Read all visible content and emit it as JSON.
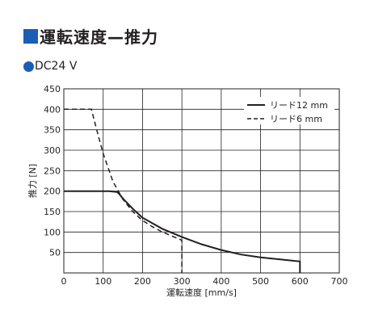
{
  "title": "運転速度—推力",
  "subtitle": "DC24 V",
  "colors": {
    "accent": "#1a5fb4",
    "line": "#231f20",
    "grid": "#231f20"
  },
  "chart_data": {
    "type": "line",
    "title": "運転速度—推力",
    "xlabel": "運転速度 [mm/s]",
    "ylabel": "推力 [N]",
    "xlim": [
      0,
      700
    ],
    "ylim": [
      0,
      450
    ],
    "xticks": [
      0,
      100,
      200,
      300,
      400,
      500,
      600,
      700
    ],
    "yticks": [
      50,
      100,
      150,
      200,
      250,
      300,
      350,
      400,
      450
    ],
    "grid": true,
    "legend_position": "top-right",
    "series": [
      {
        "name": "リード12 mm",
        "style": "solid",
        "x": [
          0,
          115,
          135,
          140,
          150,
          175,
          200,
          250,
          300,
          350,
          400,
          450,
          500,
          550,
          600,
          600
        ],
        "y": [
          200,
          200,
          198,
          194,
          182,
          157,
          135,
          108,
          88,
          70,
          56,
          45,
          38,
          33,
          28,
          0
        ]
      },
      {
        "name": "リード6 mm",
        "style": "dashed",
        "x": [
          0,
          70,
          80,
          90,
          100,
          125,
          150,
          175,
          200,
          225,
          250,
          275,
          300,
          300
        ],
        "y": [
          400,
          400,
          363,
          327,
          292,
          223,
          180,
          150,
          128,
          113,
          100,
          90,
          80,
          0
        ]
      }
    ]
  }
}
